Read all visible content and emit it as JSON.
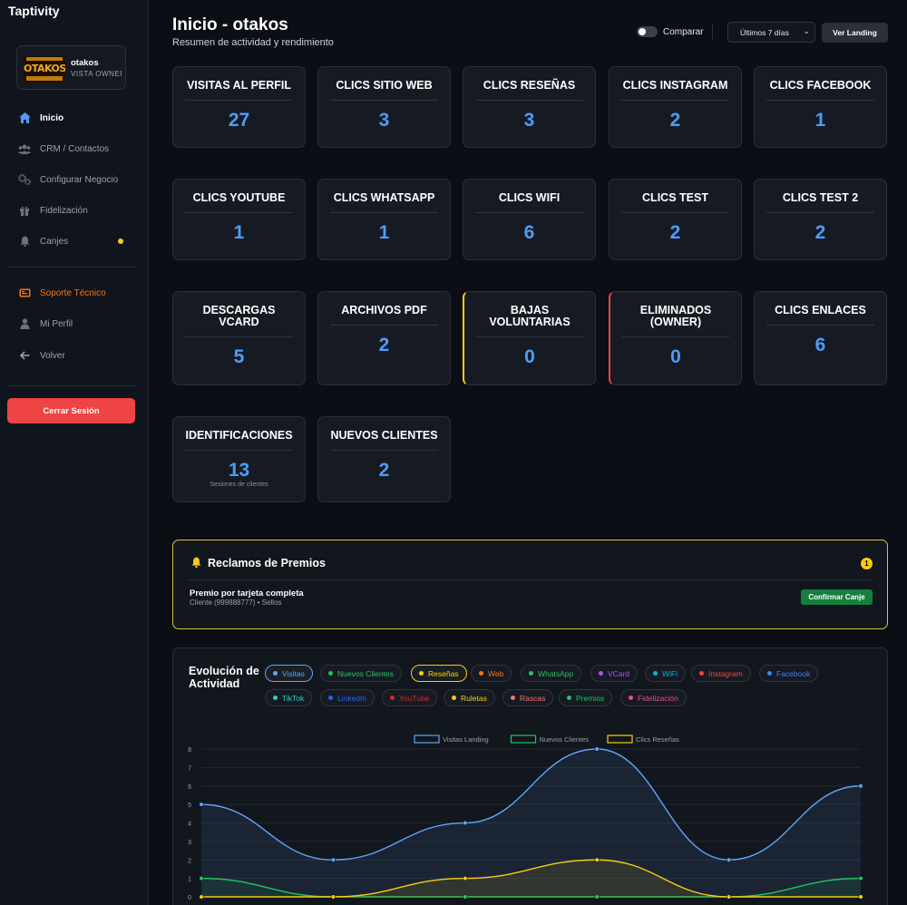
{
  "sidebar": {
    "brand": "Taptivity",
    "profile": {
      "name": "otakos",
      "role": "VISTA OWNER",
      "logo_text": "OTAKOS"
    },
    "nav": [
      {
        "label": "Inicio",
        "icon": "home-icon"
      },
      {
        "label": "CRM / Contactos",
        "icon": "users-icon"
      },
      {
        "label": "Configurar Negocio",
        "icon": "gears-icon"
      },
      {
        "label": "Fidelización",
        "icon": "gift-icon"
      },
      {
        "label": "Canjes",
        "icon": "bell-icon"
      }
    ],
    "nav2": [
      {
        "label": "Soporte Técnico",
        "icon": "support-icon"
      },
      {
        "label": "Mi Perfil",
        "icon": "user-icon"
      },
      {
        "label": "Volver",
        "icon": "arrow-left-icon"
      }
    ],
    "logout": "Cerrar Sesión"
  },
  "header": {
    "title": "Inicio - otakos",
    "subtitle": "Resumen de actividad y rendimiento",
    "compare_label": "Comparar",
    "range": "Últimos 7 días",
    "landing_button": "Ver Landing"
  },
  "stats": [
    {
      "label": "VISITAS AL PERFIL",
      "value": "27"
    },
    {
      "label": "CLICS SITIO WEB",
      "value": "3"
    },
    {
      "label": "CLICS RESEÑAS",
      "value": "3"
    },
    {
      "label": "CLICS INSTAGRAM",
      "value": "2"
    },
    {
      "label": "CLICS FACEBOOK",
      "value": "1"
    },
    {
      "label": "CLICS YOUTUBE",
      "value": "1"
    },
    {
      "label": "CLICS WHATSAPP",
      "value": "1"
    },
    {
      "label": "CLICS WIFI",
      "value": "6"
    },
    {
      "label": "CLICS TEST",
      "value": "2"
    },
    {
      "label": "CLICS TEST 2",
      "value": "2"
    },
    {
      "label": "DESCARGAS VCARD",
      "value": "5"
    },
    {
      "label": "ARCHIVOS PDF",
      "value": "2"
    },
    {
      "label": "BAJAS VOLUNTARIAS",
      "value": "0"
    },
    {
      "label": "ELIMINADOS (OWNER)",
      "value": "0"
    },
    {
      "label": "CLICS ENLACES",
      "value": "6"
    },
    {
      "label": "IDENTIFICACIONES",
      "value": "13",
      "note": "Sesiones de clientes"
    },
    {
      "label": "NUEVOS CLIENTES",
      "value": "2"
    }
  ],
  "claims": {
    "title": "Reclamos de Premios",
    "count": "1",
    "item_name": "Premio por tarjeta completa",
    "item_sub": "Cliente (999888777) • Sellos",
    "confirm": "Confirmar Canje"
  },
  "activity": {
    "title": "Evolución de Actividad",
    "chips": [
      {
        "label": "Visitas",
        "color": "#60a5fa",
        "active": true
      },
      {
        "label": "Nuevos Clientes",
        "color": "#22c55e",
        "active": false
      },
      {
        "label": "Reseñas",
        "color": "#facc15",
        "active": true
      },
      {
        "label": "Web",
        "color": "#f97316",
        "active": false
      },
      {
        "label": "WhatsApp",
        "color": "#22c55e",
        "active": false
      },
      {
        "label": "VCard",
        "color": "#a855f7",
        "active": false
      },
      {
        "label": "WiFi",
        "color": "#06b6d4",
        "active": false
      },
      {
        "label": "Instagram",
        "color": "#ef4444",
        "active": false
      },
      {
        "label": "Facebook",
        "color": "#3b82f6",
        "active": false
      },
      {
        "label": "TikTok",
        "color": "#2dd4bf",
        "active": false
      },
      {
        "label": "LinkedIn",
        "color": "#2563eb",
        "active": false
      },
      {
        "label": "YouTube",
        "color": "#dc2626",
        "active": false
      },
      {
        "label": "Ruletas",
        "color": "#facc15",
        "active": false
      },
      {
        "label": "Rascas",
        "color": "#f87171",
        "active": false
      },
      {
        "label": "Premios",
        "color": "#22c55e",
        "active": false
      },
      {
        "label": "Fidelización",
        "color": "#ec4899",
        "active": false
      }
    ]
  },
  "chart_data": {
    "type": "line",
    "ylim": [
      0,
      8
    ],
    "yticks": [
      "0",
      "1",
      "2",
      "3",
      "4",
      "5",
      "6",
      "7",
      "8"
    ],
    "x": [
      0,
      1,
      2,
      3,
      4,
      5
    ],
    "series": [
      {
        "name": "Visitas Landing",
        "color": "#60a5fa",
        "values": [
          5,
          2,
          4,
          8,
          2,
          6
        ]
      },
      {
        "name": "Nuevos Clientes",
        "color": "#22c55e",
        "values": [
          1,
          0,
          0,
          0,
          0,
          1
        ]
      },
      {
        "name": "Clics Reseñas",
        "color": "#facc15",
        "values": [
          0,
          0,
          1,
          2,
          0,
          0
        ]
      }
    ]
  }
}
